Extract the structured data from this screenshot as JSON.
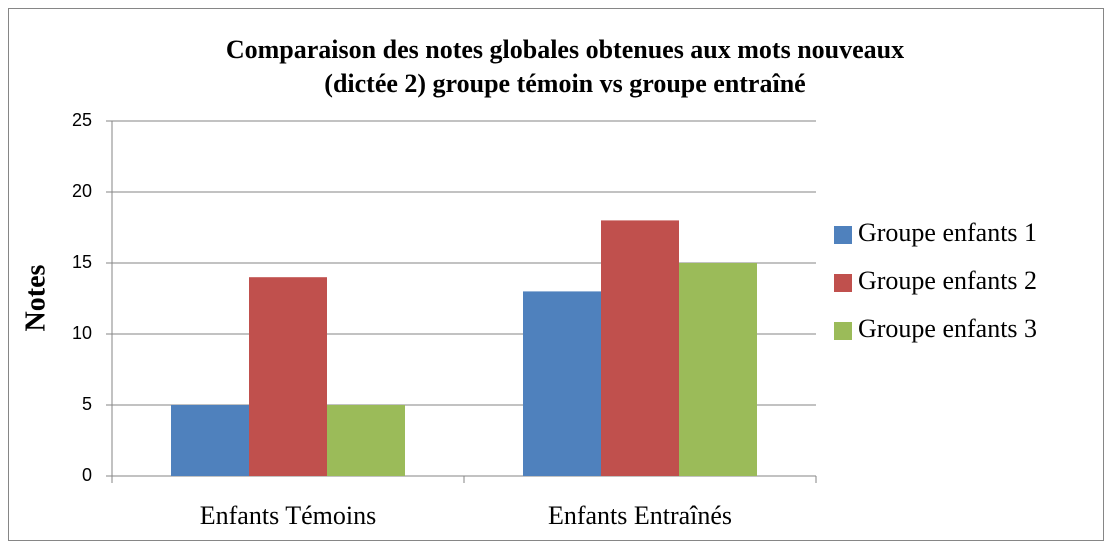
{
  "chart_data": {
    "type": "bar",
    "title": [
      "Comparaison des notes globales obtenues aux mots nouveaux",
      "(dictée 2) groupe témoin vs groupe entraîné"
    ],
    "ylabel": "Notes",
    "categories": [
      "Enfants Témoins",
      "Enfants Entraînés"
    ],
    "series": [
      {
        "name": "Groupe enfants 1",
        "color": "#4f81bd",
        "values": [
          5,
          13
        ]
      },
      {
        "name": "Groupe enfants 2",
        "color": "#c0504d",
        "values": [
          14,
          18
        ]
      },
      {
        "name": "Groupe enfants 3",
        "color": "#9bbb59",
        "values": [
          5,
          15
        ]
      }
    ],
    "ylim": [
      0,
      25
    ],
    "yticks": [
      0,
      5,
      10,
      15,
      20,
      25
    ],
    "grid": true,
    "legend": "right"
  }
}
